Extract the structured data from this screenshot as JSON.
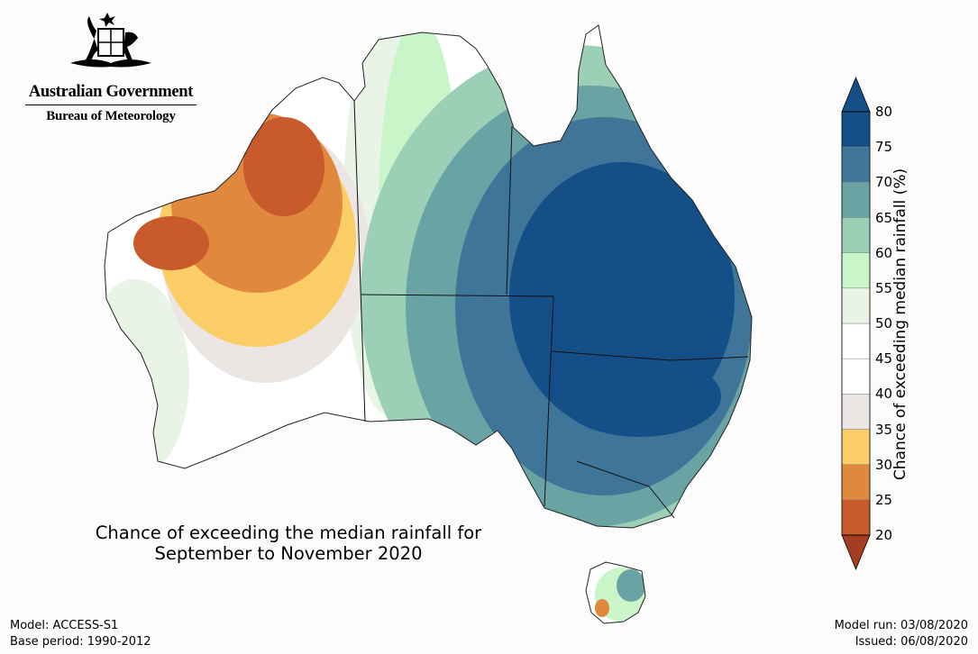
{
  "agency": {
    "government": "Australian Government",
    "bureau": "Bureau of Meteorology"
  },
  "map": {
    "title_line1": "Chance of exceeding the median rainfall for",
    "title_line2": "September to November 2020",
    "model": "Model: ACCESS-S1",
    "base_period": "Base period: 1990-2012",
    "model_run": "Model run: 03/08/2020",
    "issued": "Issued: 06/08/2020"
  },
  "colorbar": {
    "label": "Chance of exceeding median rainfall (%)",
    "ticks": [
      "20",
      "25",
      "30",
      "35",
      "40",
      "45",
      "50",
      "55",
      "60",
      "65",
      "70",
      "75",
      "80"
    ],
    "colors": [
      "#a33e22",
      "#c85a2c",
      "#e0893e",
      "#fbcd66",
      "#ebe6e3",
      "#ffffff",
      "#ffffff",
      "#e9f4e7",
      "#c9f5c9",
      "#9bd0b7",
      "#6aa3a4",
      "#3e7598",
      "#144f88"
    ]
  }
}
